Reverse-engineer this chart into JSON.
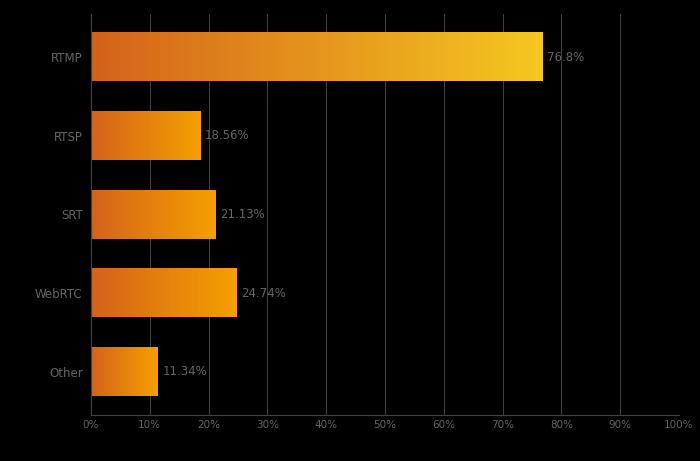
{
  "categories": [
    "RTMP",
    "RTSP",
    "SRT",
    "WebRTC",
    "Other"
  ],
  "values": [
    76.8,
    18.56,
    21.13,
    24.74,
    11.34
  ],
  "labels": [
    "76.8%",
    "18.56%",
    "21.13%",
    "24.74%",
    "11.34%"
  ],
  "background_color": "#000000",
  "text_color": "#666666",
  "grid_color": "#444444",
  "xlim": [
    0,
    100
  ],
  "xticks": [
    0,
    10,
    20,
    30,
    40,
    50,
    60,
    70,
    80,
    90,
    100
  ],
  "xtick_labels": [
    "0%",
    "10%",
    "20%",
    "30%",
    "40%",
    "50%",
    "60%",
    "70%",
    "80%",
    "90%",
    "100%"
  ],
  "bar_height": 0.62,
  "label_fontsize": 8.5,
  "tick_fontsize": 7.5,
  "ytick_fontsize": 8.5,
  "rtmp_color_left": "#D4621A",
  "rtmp_color_right": "#F5C820",
  "other_color_left": "#D4621A",
  "other_color_right": "#F5A000"
}
